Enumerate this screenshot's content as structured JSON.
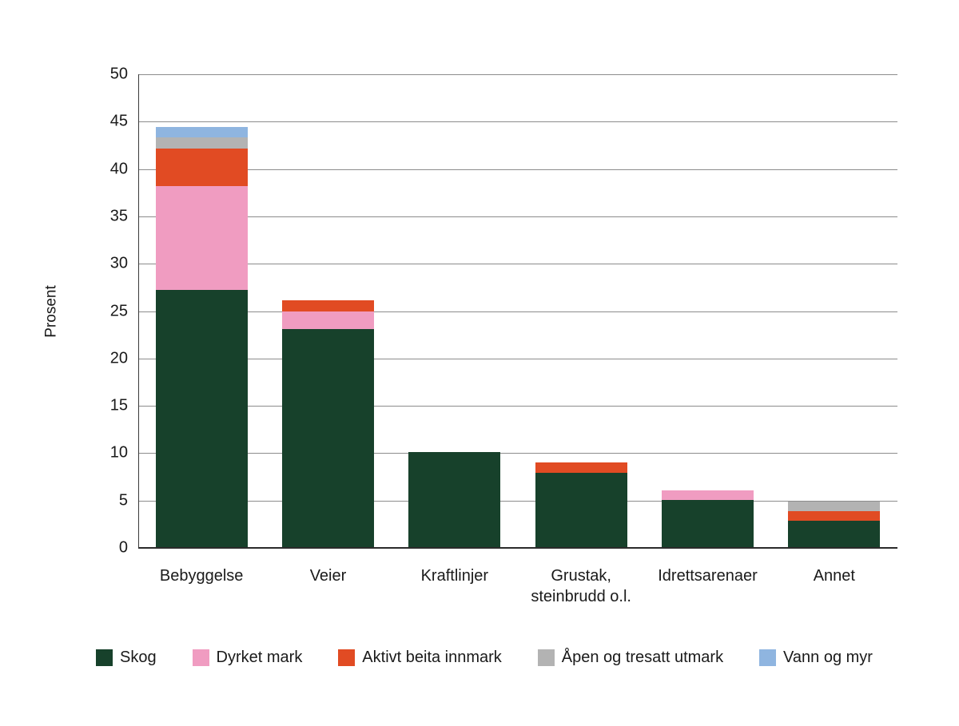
{
  "chart_data": {
    "type": "bar",
    "stacked": true,
    "title": "",
    "ylabel": "Prosent",
    "xlabel": "",
    "ylim": [
      0,
      50
    ],
    "yticks": [
      0,
      5,
      10,
      15,
      20,
      25,
      30,
      35,
      40,
      45,
      50
    ],
    "grid": true,
    "legend_position": "bottom",
    "categories": [
      "Bebyggelse",
      "Veier",
      "Kraftlinjer",
      "Grustak,\nsteinbrudd o.l.",
      "Idrettsarenaer",
      "Annet"
    ],
    "series": [
      {
        "name": "Skog",
        "color": "#17412b",
        "values": [
          27.2,
          23.1,
          10.1,
          7.9,
          5.1,
          2.9
        ]
      },
      {
        "name": "Dyrket mark",
        "color": "#f09cc1",
        "values": [
          11.0,
          1.9,
          0,
          0,
          1.0,
          0
        ]
      },
      {
        "name": "Aktivt beita innmark",
        "color": "#e14b23",
        "values": [
          4.0,
          1.1,
          0,
          1.1,
          0,
          1.0
        ]
      },
      {
        "name": "Åpen og tresatt utmark",
        "color": "#b3b3b3",
        "values": [
          1.1,
          0,
          0,
          0,
          0,
          1.0
        ]
      },
      {
        "name": "Vann og myr",
        "color": "#8fb5e0",
        "values": [
          1.1,
          0,
          0,
          0,
          0,
          0
        ]
      }
    ],
    "colors": {
      "gridline": "#8c8c8c",
      "axis": "#2b2b2b",
      "text": "#1a1a1a"
    }
  }
}
